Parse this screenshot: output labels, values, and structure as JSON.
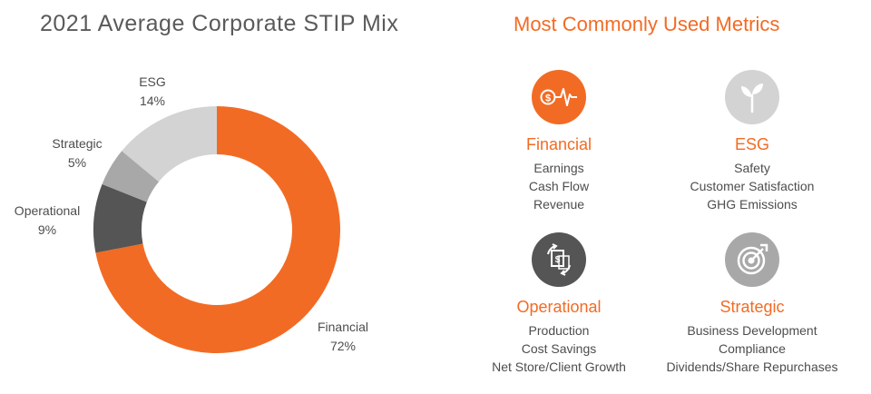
{
  "chart_title": "2021 Average Corporate STIP Mix",
  "metrics_title": "Most Commonly Used Metrics",
  "chart_data": {
    "type": "pie",
    "title": "2021 Average Corporate STIP Mix",
    "donut": true,
    "categories": [
      "Financial",
      "Operational",
      "Strategic",
      "ESG"
    ],
    "values": [
      72,
      9,
      5,
      14
    ],
    "value_labels": [
      "72%",
      "9%",
      "5%",
      "14%"
    ],
    "colors": [
      "#f26b24",
      "#555555",
      "#a8a8a8",
      "#d3d3d3"
    ]
  },
  "metrics": [
    {
      "name": "Financial",
      "icon": "dollar-pulse-icon",
      "icon_color": "#f26b24",
      "items": [
        "Earnings",
        "Cash Flow",
        "Revenue"
      ]
    },
    {
      "name": "ESG",
      "icon": "sprout-icon",
      "icon_color": "#d3d3d3",
      "items": [
        "Safety",
        "Customer Satisfaction",
        "GHG Emissions"
      ]
    },
    {
      "name": "Operational",
      "icon": "document-exchange-icon",
      "icon_color": "#555555",
      "items": [
        "Production",
        "Cost Savings",
        "Net Store/Client Growth"
      ]
    },
    {
      "name": "Strategic",
      "icon": "target-icon",
      "icon_color": "#a8a8a8",
      "items": [
        "Business Development",
        "Compliance",
        "Dividends/Share Repurchases"
      ]
    }
  ]
}
